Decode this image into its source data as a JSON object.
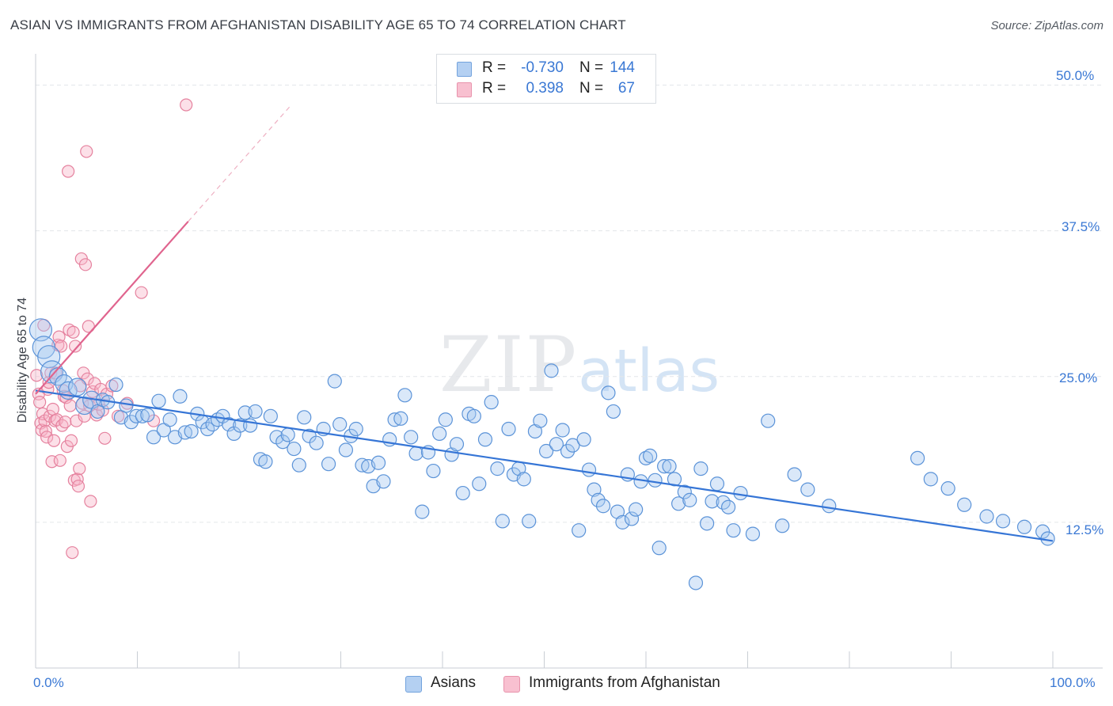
{
  "title": "ASIAN VS IMMIGRANTS FROM AFGHANISTAN DISABILITY AGE 65 TO 74 CORRELATION CHART",
  "source": "Source: ZipAtlas.com",
  "watermark": {
    "part1": "ZIP",
    "part2": "atlas"
  },
  "stats": [
    {
      "r_label": "R =",
      "r_value": "-0.730",
      "n_label": "N =",
      "n_value": "144",
      "color": "#a8c8f0"
    },
    {
      "r_label": "R =",
      "r_value": "0.398",
      "n_label": "N =",
      "n_value": "67",
      "color": "#f7b6c8"
    }
  ],
  "legend": [
    {
      "label": "Asians",
      "color": "#a8c8f0"
    },
    {
      "label": "Immigrants from Afghanistan",
      "color": "#f7b6c8"
    }
  ],
  "colors": {
    "asian_fill": "#a8c8f0",
    "asian_stroke": "#5b93d8",
    "asian_line": "#3575d6",
    "afghan_fill": "#f7b6c8",
    "afghan_stroke": "#e5819e",
    "afghan_line": "#e0648e",
    "tick_text": "#3a78d4",
    "grid": "#e3e6ea"
  },
  "chart_data": {
    "type": "scatter",
    "title": "ASIAN VS IMMIGRANTS FROM AFGHANISTAN DISABILITY AGE 65 TO 74 CORRELATION CHART",
    "xlabel": "",
    "ylabel": "Disability Age 65 to 74",
    "xlim": [
      0,
      100
    ],
    "ylim": [
      0,
      52
    ],
    "x_tick_labels": [
      "0.0%",
      "100.0%"
    ],
    "y_ticks": [
      12.5,
      25.0,
      37.5,
      50.0
    ],
    "y_tick_labels": [
      "12.5%",
      "25.0%",
      "37.5%",
      "50.0%"
    ],
    "grid": true,
    "legend_position": "bottom",
    "series": [
      {
        "name": "Asians",
        "trend": {
          "x": [
            0,
            100
          ],
          "y": [
            23.8,
            10.9
          ]
        },
        "points": [
          [
            0.5,
            29.0
          ],
          [
            0.8,
            27.5
          ],
          [
            1.3,
            26.7
          ],
          [
            1.6,
            25.4
          ],
          [
            2.2,
            25.0
          ],
          [
            2.8,
            24.4
          ],
          [
            3.2,
            23.8
          ],
          [
            4.1,
            24.1
          ],
          [
            4.8,
            22.5
          ],
          [
            5.5,
            23.0
          ],
          [
            6.1,
            22.0
          ],
          [
            6.6,
            23.0
          ],
          [
            7.1,
            22.8
          ],
          [
            7.9,
            24.3
          ],
          [
            8.4,
            21.5
          ],
          [
            8.9,
            22.5
          ],
          [
            9.4,
            21.1
          ],
          [
            9.9,
            21.6
          ],
          [
            10.5,
            21.6
          ],
          [
            11.0,
            21.7
          ],
          [
            11.6,
            19.8
          ],
          [
            12.1,
            22.9
          ],
          [
            12.6,
            20.4
          ],
          [
            13.2,
            21.3
          ],
          [
            13.7,
            19.8
          ],
          [
            14.2,
            23.3
          ],
          [
            14.7,
            20.2
          ],
          [
            15.3,
            20.3
          ],
          [
            15.9,
            21.8
          ],
          [
            16.4,
            21.1
          ],
          [
            16.9,
            20.5
          ],
          [
            17.4,
            20.9
          ],
          [
            17.9,
            21.3
          ],
          [
            18.4,
            21.6
          ],
          [
            19.0,
            20.9
          ],
          [
            19.5,
            20.1
          ],
          [
            20.1,
            20.8
          ],
          [
            20.6,
            21.9
          ],
          [
            21.1,
            20.8
          ],
          [
            21.6,
            22.0
          ],
          [
            22.1,
            17.9
          ],
          [
            22.6,
            17.7
          ],
          [
            23.1,
            21.6
          ],
          [
            23.7,
            19.8
          ],
          [
            24.3,
            19.4
          ],
          [
            24.8,
            20.0
          ],
          [
            25.4,
            18.8
          ],
          [
            25.9,
            17.4
          ],
          [
            26.4,
            21.5
          ],
          [
            26.9,
            19.9
          ],
          [
            27.6,
            19.3
          ],
          [
            28.3,
            20.5
          ],
          [
            28.8,
            17.5
          ],
          [
            29.4,
            24.6
          ],
          [
            29.9,
            20.9
          ],
          [
            30.5,
            18.7
          ],
          [
            31.0,
            19.9
          ],
          [
            31.5,
            20.5
          ],
          [
            32.1,
            17.4
          ],
          [
            32.7,
            17.3
          ],
          [
            33.2,
            15.6
          ],
          [
            33.7,
            17.6
          ],
          [
            34.2,
            16.0
          ],
          [
            34.8,
            19.6
          ],
          [
            35.3,
            21.3
          ],
          [
            35.9,
            21.4
          ],
          [
            36.3,
            23.4
          ],
          [
            36.9,
            19.8
          ],
          [
            37.4,
            18.4
          ],
          [
            38.0,
            13.4
          ],
          [
            38.6,
            18.5
          ],
          [
            39.1,
            16.9
          ],
          [
            39.7,
            20.1
          ],
          [
            40.3,
            21.3
          ],
          [
            40.9,
            18.3
          ],
          [
            41.4,
            19.2
          ],
          [
            42.0,
            15.0
          ],
          [
            42.6,
            21.8
          ],
          [
            43.1,
            21.6
          ],
          [
            43.6,
            15.8
          ],
          [
            44.2,
            19.6
          ],
          [
            44.8,
            22.8
          ],
          [
            45.4,
            17.1
          ],
          [
            45.9,
            12.6
          ],
          [
            46.5,
            20.5
          ],
          [
            47.0,
            16.6
          ],
          [
            47.5,
            17.1
          ],
          [
            48.0,
            16.2
          ],
          [
            48.5,
            12.6
          ],
          [
            49.1,
            20.3
          ],
          [
            49.6,
            21.2
          ],
          [
            50.2,
            18.6
          ],
          [
            50.7,
            25.5
          ],
          [
            51.2,
            19.2
          ],
          [
            51.8,
            20.4
          ],
          [
            52.3,
            18.6
          ],
          [
            52.8,
            19.1
          ],
          [
            53.4,
            11.8
          ],
          [
            53.9,
            19.6
          ],
          [
            54.4,
            17.0
          ],
          [
            54.9,
            15.3
          ],
          [
            55.3,
            14.4
          ],
          [
            55.8,
            13.9
          ],
          [
            56.3,
            23.6
          ],
          [
            56.8,
            22.0
          ],
          [
            57.2,
            13.4
          ],
          [
            57.7,
            12.5
          ],
          [
            58.2,
            16.6
          ],
          [
            58.6,
            12.8
          ],
          [
            59.0,
            13.6
          ],
          [
            59.5,
            16.0
          ],
          [
            60.0,
            18.0
          ],
          [
            60.4,
            18.2
          ],
          [
            60.9,
            16.1
          ],
          [
            61.3,
            10.3
          ],
          [
            61.8,
            17.3
          ],
          [
            62.3,
            17.3
          ],
          [
            62.8,
            16.2
          ],
          [
            63.2,
            14.1
          ],
          [
            63.8,
            15.1
          ],
          [
            64.3,
            14.4
          ],
          [
            64.9,
            7.3
          ],
          [
            65.4,
            17.1
          ],
          [
            66.0,
            12.4
          ],
          [
            66.5,
            14.3
          ],
          [
            67.0,
            15.8
          ],
          [
            67.6,
            14.2
          ],
          [
            68.1,
            13.8
          ],
          [
            68.6,
            11.8
          ],
          [
            69.3,
            15.0
          ],
          [
            70.5,
            11.5
          ],
          [
            72.0,
            21.2
          ],
          [
            73.4,
            12.2
          ],
          [
            74.6,
            16.6
          ],
          [
            75.9,
            15.3
          ],
          [
            78.0,
            13.9
          ],
          [
            86.7,
            18.0
          ],
          [
            88.0,
            16.2
          ],
          [
            89.7,
            15.4
          ],
          [
            91.3,
            14.0
          ],
          [
            93.5,
            13.0
          ],
          [
            95.1,
            12.6
          ],
          [
            97.2,
            12.1
          ],
          [
            99.0,
            11.7
          ],
          [
            99.5,
            11.1
          ]
        ]
      },
      {
        "name": "Immigrants from Afghanistan",
        "trend": {
          "x": [
            0,
            15.0
          ],
          "y": [
            23.5,
            38.3
          ]
        },
        "points": [
          [
            0.1,
            25.1
          ],
          [
            0.3,
            23.5
          ],
          [
            0.4,
            22.8
          ],
          [
            0.5,
            21.0
          ],
          [
            0.6,
            20.4
          ],
          [
            0.7,
            21.8
          ],
          [
            0.8,
            29.4
          ],
          [
            0.9,
            21.2
          ],
          [
            1.0,
            20.3
          ],
          [
            1.1,
            19.8
          ],
          [
            1.2,
            23.9
          ],
          [
            1.3,
            24.5
          ],
          [
            1.4,
            21.6
          ],
          [
            1.5,
            25.3
          ],
          [
            1.6,
            17.7
          ],
          [
            1.7,
            22.2
          ],
          [
            1.8,
            19.5
          ],
          [
            1.9,
            21.2
          ],
          [
            2.0,
            25.3
          ],
          [
            2.1,
            21.3
          ],
          [
            2.2,
            27.7
          ],
          [
            2.3,
            28.4
          ],
          [
            2.4,
            17.8
          ],
          [
            2.5,
            27.6
          ],
          [
            2.6,
            20.8
          ],
          [
            2.7,
            23.8
          ],
          [
            2.8,
            23.3
          ],
          [
            2.9,
            21.1
          ],
          [
            3.0,
            23.2
          ],
          [
            3.1,
            19.0
          ],
          [
            3.2,
            42.6
          ],
          [
            3.3,
            29.0
          ],
          [
            3.4,
            22.5
          ],
          [
            3.5,
            19.5
          ],
          [
            3.6,
            9.9
          ],
          [
            3.7,
            28.8
          ],
          [
            3.8,
            16.1
          ],
          [
            3.9,
            27.6
          ],
          [
            4.0,
            21.2
          ],
          [
            4.1,
            16.2
          ],
          [
            4.2,
            15.6
          ],
          [
            4.3,
            17.1
          ],
          [
            4.4,
            24.2
          ],
          [
            4.5,
            35.1
          ],
          [
            4.6,
            22.7
          ],
          [
            4.7,
            25.3
          ],
          [
            4.8,
            21.6
          ],
          [
            4.9,
            34.6
          ],
          [
            5.0,
            44.3
          ],
          [
            5.1,
            24.8
          ],
          [
            5.2,
            29.3
          ],
          [
            5.3,
            22.5
          ],
          [
            5.4,
            14.3
          ],
          [
            5.6,
            23.7
          ],
          [
            5.8,
            24.4
          ],
          [
            6.0,
            21.7
          ],
          [
            6.2,
            22.6
          ],
          [
            6.4,
            23.9
          ],
          [
            6.6,
            22.1
          ],
          [
            6.8,
            19.7
          ],
          [
            7.0,
            23.5
          ],
          [
            7.5,
            24.2
          ],
          [
            8.1,
            21.6
          ],
          [
            9.0,
            22.7
          ],
          [
            10.4,
            32.2
          ],
          [
            11.6,
            21.2
          ],
          [
            14.8,
            48.3
          ]
        ]
      }
    ]
  }
}
